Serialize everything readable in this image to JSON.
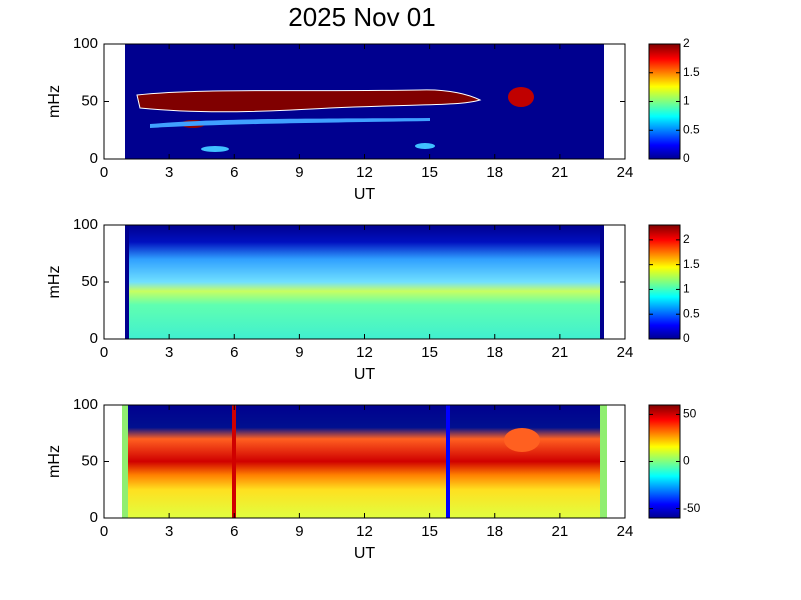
{
  "title": "2025 Nov 01",
  "chart_data": [
    {
      "type": "heatmap",
      "xlabel": "UT",
      "ylabel": "mHz",
      "xlim": [
        0,
        24
      ],
      "xticks": [
        0,
        3,
        6,
        9,
        12,
        15,
        18,
        21,
        24
      ],
      "ylim": [
        0,
        100
      ],
      "yticks": [
        0,
        50,
        100
      ],
      "clim": [
        0,
        2
      ],
      "cticks": [
        0,
        0.5,
        1,
        1.5,
        2
      ]
    },
    {
      "type": "heatmap",
      "xlabel": "UT",
      "ylabel": "mHz",
      "xlim": [
        0,
        24
      ],
      "xticks": [
        0,
        3,
        6,
        9,
        12,
        15,
        18,
        21,
        24
      ],
      "ylim": [
        0,
        100
      ],
      "yticks": [
        0,
        50,
        100
      ],
      "clim": [
        0,
        2.3
      ],
      "cticks": [
        0,
        0.5,
        1,
        1.5,
        2
      ]
    },
    {
      "type": "heatmap",
      "xlabel": "UT",
      "ylabel": "mHz",
      "xlim": [
        0,
        24
      ],
      "xticks": [
        0,
        3,
        6,
        9,
        12,
        15,
        18,
        21,
        24
      ],
      "ylim": [
        0,
        100
      ],
      "yticks": [
        0,
        50,
        100
      ],
      "clim": [
        -60,
        60
      ],
      "cticks": [
        -50,
        0,
        50
      ]
    }
  ]
}
